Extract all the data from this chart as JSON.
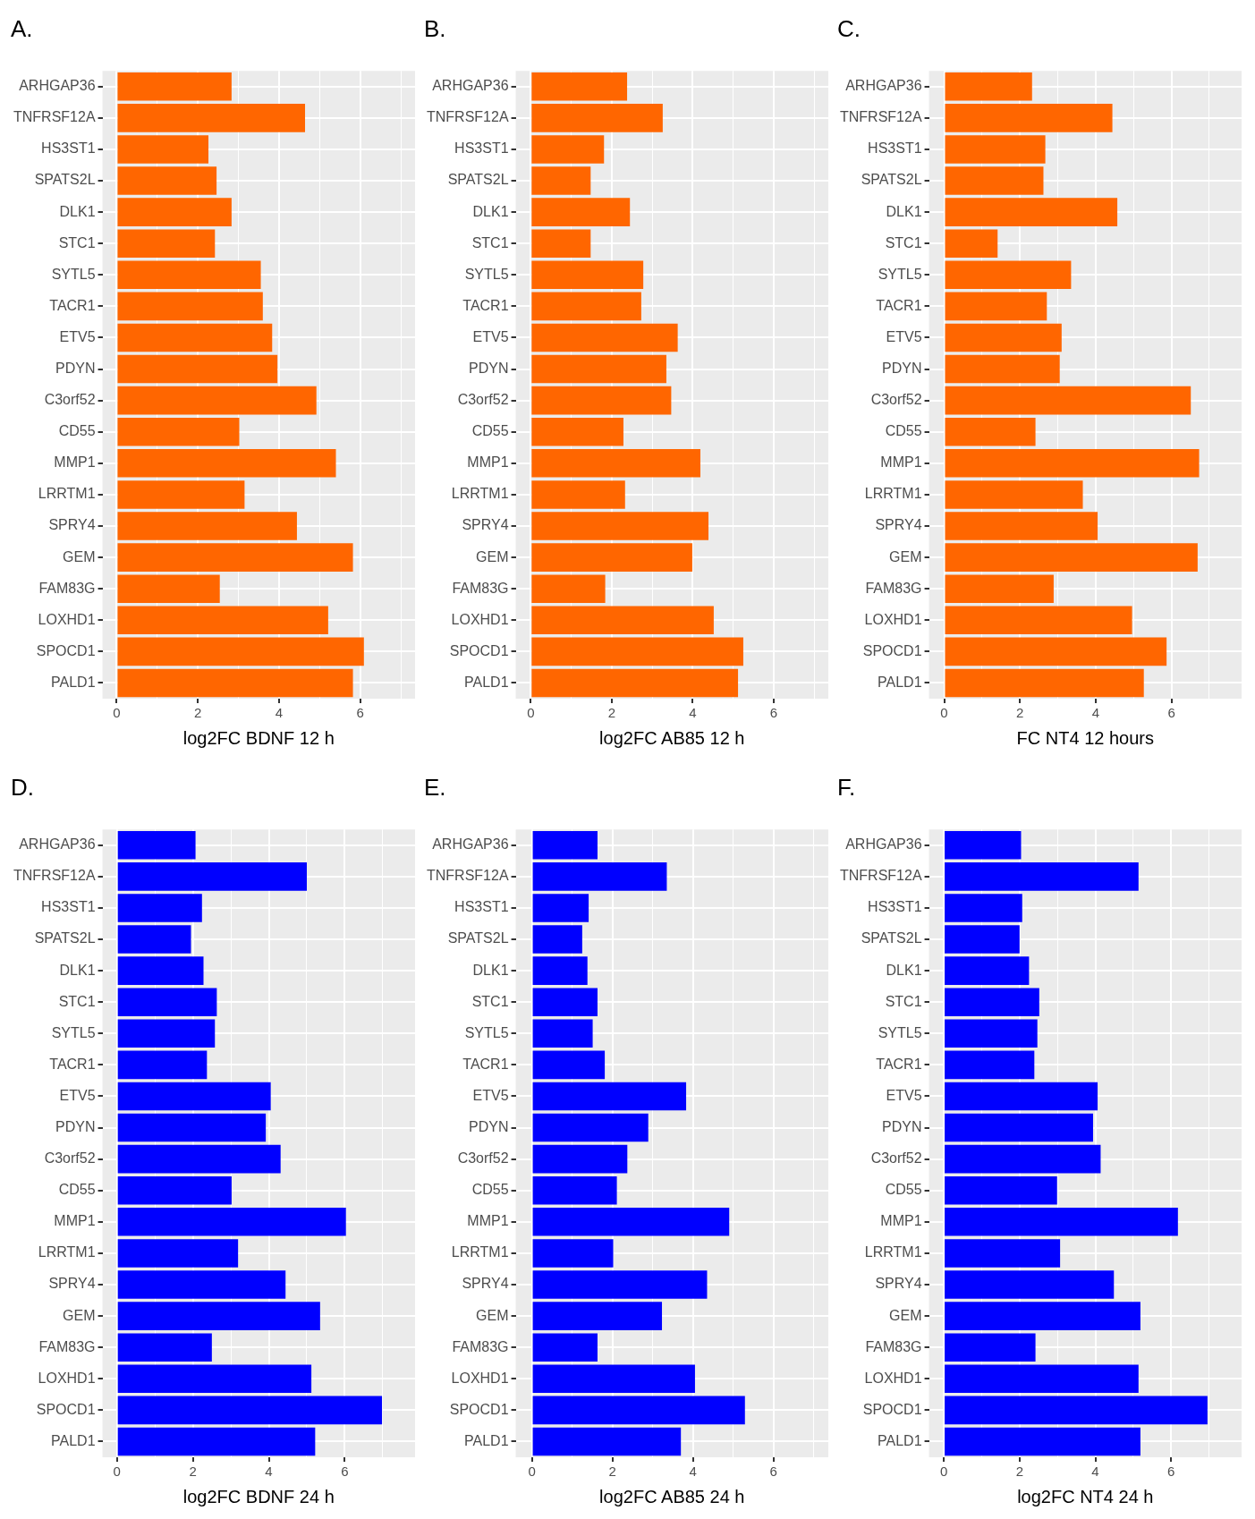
{
  "chart_data": [
    {
      "type": "bar",
      "orientation": "horizontal",
      "title": "A.",
      "xlabel": "log2FC BDNF 12 h",
      "color": "#ff6600",
      "grid": true,
      "xlim": [
        -0.35,
        7.35
      ],
      "xticks": [
        0,
        {
          "value": 1,
          "label": null
        },
        2,
        {
          "value": 3,
          "label": null
        },
        4,
        {
          "value": 5,
          "label": null
        },
        6,
        {
          "value": 7,
          "label": null
        }
      ],
      "categories": [
        "ARHGAP36",
        "TNFRSF12A",
        "HS3ST1",
        "SPATS2L",
        "DLK1",
        "STC1",
        "SYTL5",
        "TACR1",
        "ETV5",
        "PDYN",
        "C3orf52",
        "CD55",
        "MMP1",
        "LRRTM1",
        "SPRY4",
        "GEM",
        "FAM83G",
        "LOXHD1",
        "SPOCD1",
        "PALD1"
      ],
      "values": [
        2.83,
        4.64,
        2.26,
        2.46,
        2.83,
        2.42,
        3.55,
        3.6,
        3.83,
        3.96,
        4.92,
        3.02,
        5.4,
        3.15,
        4.44,
        5.82,
        2.54,
        5.21,
        6.09,
        5.82
      ]
    },
    {
      "type": "bar",
      "orientation": "horizontal",
      "title": "B.",
      "xlabel": "log2FC AB85 12 h",
      "color": "#ff6600",
      "grid": true,
      "xlim": [
        -0.37,
        7.35
      ],
      "xticks": [
        0,
        {
          "value": 1,
          "label": null
        },
        2,
        {
          "value": 3,
          "label": null
        },
        4,
        {
          "value": 5,
          "label": null
        },
        6,
        {
          "value": 7,
          "label": null
        }
      ],
      "categories": [
        "ARHGAP36",
        "TNFRSF12A",
        "HS3ST1",
        "SPATS2L",
        "DLK1",
        "STC1",
        "SYTL5",
        "TACR1",
        "ETV5",
        "PDYN",
        "C3orf52",
        "CD55",
        "MMP1",
        "LRRTM1",
        "SPRY4",
        "GEM",
        "FAM83G",
        "LOXHD1",
        "SPOCD1",
        "PALD1"
      ],
      "values": [
        2.38,
        3.26,
        1.81,
        1.48,
        2.45,
        1.48,
        2.78,
        2.73,
        3.63,
        3.35,
        3.47,
        2.29,
        4.19,
        2.33,
        4.39,
        3.99,
        1.84,
        4.52,
        5.25,
        5.12
      ]
    },
    {
      "type": "bar",
      "orientation": "horizontal",
      "title": "C.",
      "xlabel": "FC NT4 12 hours",
      "color": "#ff6600",
      "grid": true,
      "xlim": [
        -0.4,
        7.85
      ],
      "xticks": [
        0,
        {
          "value": 1,
          "label": null
        },
        2,
        {
          "value": 3,
          "label": null
        },
        4,
        {
          "value": 5,
          "label": null
        },
        6,
        {
          "value": 7,
          "label": null
        }
      ],
      "categories": [
        "ARHGAP36",
        "TNFRSF12A",
        "HS3ST1",
        "SPATS2L",
        "DLK1",
        "STC1",
        "SYTL5",
        "TACR1",
        "ETV5",
        "PDYN",
        "C3orf52",
        "CD55",
        "MMP1",
        "LRRTM1",
        "SPRY4",
        "GEM",
        "FAM83G",
        "LOXHD1",
        "SPOCD1",
        "PALD1"
      ],
      "values": [
        2.32,
        4.44,
        2.67,
        2.62,
        4.57,
        1.41,
        3.35,
        2.71,
        3.1,
        3.05,
        6.51,
        2.41,
        6.73,
        3.66,
        4.05,
        6.69,
        2.89,
        4.96,
        5.87,
        5.27
      ]
    },
    {
      "type": "bar",
      "orientation": "horizontal",
      "title": "D.",
      "xlabel": "log2FC BDNF 24 h",
      "color": "#0000ff",
      "grid": true,
      "xlim": [
        -0.38,
        7.85
      ],
      "xticks": [
        0,
        {
          "value": 1,
          "label": null
        },
        2,
        {
          "value": 3,
          "label": null
        },
        4,
        {
          "value": 5,
          "label": null
        },
        6,
        {
          "value": 7,
          "label": null
        }
      ],
      "categories": [
        "ARHGAP36",
        "TNFRSF12A",
        "HS3ST1",
        "SPATS2L",
        "DLK1",
        "STC1",
        "SYTL5",
        "TACR1",
        "ETV5",
        "PDYN",
        "C3orf52",
        "CD55",
        "MMP1",
        "LRRTM1",
        "SPRY4",
        "GEM",
        "FAM83G",
        "LOXHD1",
        "SPOCD1",
        "PALD1"
      ],
      "values": [
        2.07,
        5.0,
        2.24,
        1.95,
        2.28,
        2.63,
        2.58,
        2.37,
        4.05,
        3.92,
        4.31,
        3.02,
        6.03,
        3.19,
        4.44,
        5.35,
        2.5,
        5.12,
        6.98,
        5.22
      ]
    },
    {
      "type": "bar",
      "orientation": "horizontal",
      "title": "E.",
      "xlabel": "log2FC AB85 24 h",
      "color": "#0000ff",
      "grid": true,
      "xlim": [
        -0.4,
        7.36
      ],
      "xticks": [
        0,
        {
          "value": 1,
          "label": null
        },
        2,
        {
          "value": 3,
          "label": null
        },
        4,
        {
          "value": 5,
          "label": null
        },
        6,
        {
          "value": 7,
          "label": null
        }
      ],
      "categories": [
        "ARHGAP36",
        "TNFRSF12A",
        "HS3ST1",
        "SPATS2L",
        "DLK1",
        "STC1",
        "SYTL5",
        "TACR1",
        "ETV5",
        "PDYN",
        "C3orf52",
        "CD55",
        "MMP1",
        "LRRTM1",
        "SPRY4",
        "GEM",
        "FAM83G",
        "LOXHD1",
        "SPOCD1",
        "PALD1"
      ],
      "values": [
        1.63,
        3.35,
        1.41,
        1.25,
        1.38,
        1.63,
        1.51,
        1.81,
        3.83,
        2.89,
        2.37,
        2.11,
        4.9,
        2.02,
        4.35,
        3.23,
        1.63,
        4.05,
        5.29,
        3.7
      ]
    },
    {
      "type": "bar",
      "orientation": "horizontal",
      "title": "F.",
      "xlabel": "log2FC NT4 24 h",
      "color": "#0000ff",
      "grid": true,
      "xlim": [
        -0.39,
        7.86
      ],
      "xticks": [
        0,
        {
          "value": 1,
          "label": null
        },
        2,
        {
          "value": 3,
          "label": null
        },
        4,
        {
          "value": 5,
          "label": null
        },
        6,
        {
          "value": 7,
          "label": null
        }
      ],
      "categories": [
        "ARHGAP36",
        "TNFRSF12A",
        "HS3ST1",
        "SPATS2L",
        "DLK1",
        "STC1",
        "SYTL5",
        "TACR1",
        "ETV5",
        "PDYN",
        "C3orf52",
        "CD55",
        "MMP1",
        "LRRTM1",
        "SPRY4",
        "GEM",
        "FAM83G",
        "LOXHD1",
        "SPOCD1",
        "PALD1"
      ],
      "values": [
        2.04,
        5.14,
        2.07,
        2.0,
        2.25,
        2.52,
        2.47,
        2.39,
        4.06,
        3.94,
        4.14,
        2.99,
        6.18,
        3.07,
        4.49,
        5.19,
        2.42,
        5.14,
        6.96,
        5.19
      ]
    }
  ]
}
